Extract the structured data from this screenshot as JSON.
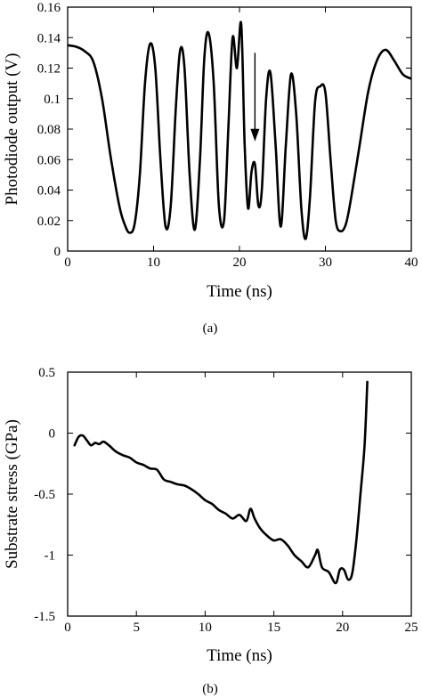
{
  "chart_data": [
    {
      "id": "a",
      "type": "line",
      "xlabel": "Time (ns)",
      "ylabel": "Photodiode output (V)",
      "caption": "(a)",
      "xlim": [
        0,
        40
      ],
      "ylim": [
        0,
        0.16
      ],
      "xticks": [
        0,
        10,
        20,
        30,
        40
      ],
      "xtick_labels": [
        "0",
        "10",
        "20",
        "30",
        "40"
      ],
      "yticks": [
        0,
        0.02,
        0.04,
        0.06,
        0.08,
        0.1,
        0.12,
        0.14,
        0.16
      ],
      "ytick_labels": [
        "0",
        "0.02",
        "0.04",
        "0.06",
        "0.08",
        "0.1",
        "0.12",
        "0.14",
        "0.16"
      ],
      "grid": false,
      "annotation": {
        "type": "arrow",
        "x": 21.8,
        "y_from": 0.13,
        "y_to": 0.072
      },
      "series": [
        {
          "x": [
            0,
            1,
            2,
            3,
            4,
            5,
            6,
            6.6,
            7.2,
            7.8,
            8.4,
            9.0,
            9.6,
            10.2,
            10.8,
            11.4,
            12.0,
            12.6,
            13.1,
            13.6,
            14.2,
            14.8,
            15.4,
            15.9,
            16.4,
            17.0,
            17.6,
            18.2,
            18.7,
            19.2,
            19.7,
            20.2,
            20.6,
            21.0,
            21.4,
            21.8,
            22.2,
            22.6,
            23.1,
            23.6,
            24.2,
            24.8,
            25.4,
            26.0,
            26.6,
            27.2,
            27.7,
            28.2,
            28.8,
            29.4,
            30.0,
            30.6,
            31.2,
            31.8,
            32.4,
            33.0,
            34.0,
            35.0,
            36.0,
            37.0,
            38.0,
            39.0,
            40.0
          ],
          "y": [
            0.135,
            0.134,
            0.131,
            0.124,
            0.1,
            0.062,
            0.03,
            0.018,
            0.012,
            0.018,
            0.05,
            0.11,
            0.136,
            0.12,
            0.06,
            0.016,
            0.03,
            0.095,
            0.132,
            0.12,
            0.05,
            0.014,
            0.06,
            0.126,
            0.143,
            0.11,
            0.03,
            0.02,
            0.08,
            0.14,
            0.12,
            0.149,
            0.07,
            0.028,
            0.052,
            0.057,
            0.03,
            0.04,
            0.1,
            0.117,
            0.07,
            0.016,
            0.07,
            0.116,
            0.09,
            0.028,
            0.008,
            0.035,
            0.098,
            0.108,
            0.104,
            0.06,
            0.02,
            0.013,
            0.018,
            0.035,
            0.07,
            0.105,
            0.125,
            0.132,
            0.125,
            0.116,
            0.113
          ]
        }
      ]
    },
    {
      "id": "b",
      "type": "line",
      "xlabel": "Time (ns)",
      "ylabel": "Substrate stress (GPa)",
      "caption": "(b)",
      "xlim": [
        0,
        25
      ],
      "ylim": [
        -1.5,
        0.5
      ],
      "xticks": [
        0,
        5,
        10,
        15,
        20,
        25
      ],
      "xtick_labels": [
        "0",
        "5",
        "10",
        "15",
        "20",
        "25"
      ],
      "yticks": [
        -1.5,
        -1,
        -0.5,
        0,
        0.5
      ],
      "ytick_labels": [
        "-1.5",
        "-1",
        "-0.5",
        "0",
        "0.5"
      ],
      "grid": false,
      "series": [
        {
          "x": [
            0.5,
            0.8,
            1.1,
            1.4,
            1.7,
            2.0,
            2.3,
            2.6,
            3.0,
            3.5,
            4.0,
            4.5,
            5.0,
            5.5,
            6.0,
            6.5,
            7.0,
            7.5,
            8.0,
            8.5,
            9.0,
            9.5,
            10.0,
            10.5,
            11.0,
            11.5,
            12.0,
            12.5,
            13.0,
            13.3,
            13.6,
            14.0,
            14.5,
            15.0,
            15.5,
            16.0,
            16.5,
            17.0,
            17.5,
            18.0,
            18.2,
            18.5,
            19.0,
            19.5,
            19.8,
            20.1,
            20.4,
            20.7,
            21.0,
            21.3,
            21.6,
            21.8
          ],
          "y": [
            -0.1,
            -0.03,
            -0.02,
            -0.06,
            -0.1,
            -0.08,
            -0.09,
            -0.07,
            -0.1,
            -0.15,
            -0.18,
            -0.2,
            -0.24,
            -0.26,
            -0.29,
            -0.3,
            -0.38,
            -0.4,
            -0.42,
            -0.43,
            -0.46,
            -0.5,
            -0.55,
            -0.58,
            -0.63,
            -0.66,
            -0.7,
            -0.67,
            -0.72,
            -0.62,
            -0.7,
            -0.78,
            -0.84,
            -0.88,
            -0.87,
            -0.92,
            -1.0,
            -1.05,
            -1.1,
            -1.0,
            -0.96,
            -1.1,
            -1.14,
            -1.23,
            -1.12,
            -1.12,
            -1.2,
            -1.15,
            -0.88,
            -0.5,
            -0.1,
            0.42
          ]
        }
      ]
    }
  ]
}
